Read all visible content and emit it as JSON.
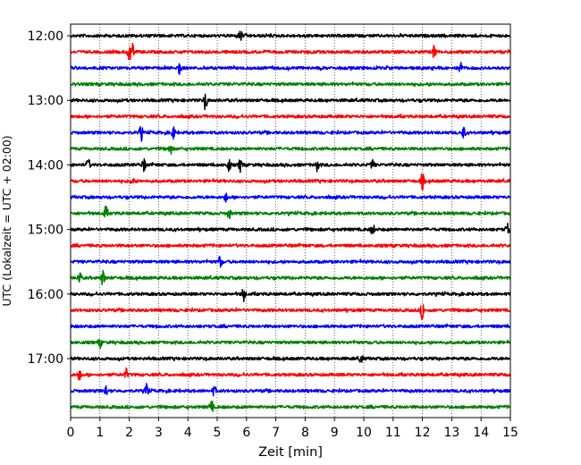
{
  "chart_data": {
    "type": "line",
    "title": "",
    "xlabel": "Zeit  [min]",
    "ylabel": "UTC (Lokalzeit = UTC + 02:00)",
    "xlim": [
      0,
      15
    ],
    "x_ticks": [
      0,
      1,
      2,
      3,
      4,
      5,
      6,
      7,
      8,
      9,
      10,
      11,
      12,
      13,
      14,
      15
    ],
    "y_ticks": [
      "12:00",
      "13:00",
      "14:00",
      "15:00",
      "16:00",
      "17:00"
    ],
    "grid": "vertical dotted",
    "legend": "none",
    "rows": [
      {
        "start": "12:00",
        "color": "#000000",
        "events": [
          [
            5.8,
            1.0
          ]
        ]
      },
      {
        "start": "12:15",
        "color": "#ff0000",
        "events": [
          [
            2.0,
            1.6
          ],
          [
            2.1,
            1.4
          ],
          [
            12.4,
            1.2
          ]
        ]
      },
      {
        "start": "12:30",
        "color": "#0000ff",
        "events": [
          [
            3.7,
            1.2
          ],
          [
            13.3,
            1.0
          ]
        ]
      },
      {
        "start": "12:45",
        "color": "#008000",
        "events": []
      },
      {
        "start": "13:00",
        "color": "#000000",
        "events": [
          [
            4.6,
            1.6
          ]
        ]
      },
      {
        "start": "13:15",
        "color": "#ff0000",
        "events": []
      },
      {
        "start": "13:30",
        "color": "#0000ff",
        "events": [
          [
            2.4,
            1.3
          ],
          [
            3.5,
            1.0
          ],
          [
            13.4,
            1.0
          ]
        ]
      },
      {
        "start": "13:45",
        "color": "#008000",
        "events": [
          [
            3.4,
            1.0
          ]
        ]
      },
      {
        "start": "14:00",
        "color": "#000000",
        "events": [
          [
            0.6,
            1.0
          ],
          [
            2.5,
            1.0
          ],
          [
            5.4,
            1.1
          ],
          [
            5.8,
            1.3
          ],
          [
            8.4,
            0.9
          ],
          [
            10.3,
            0.8
          ]
        ]
      },
      {
        "start": "14:15",
        "color": "#ff0000",
        "events": [
          [
            2.1,
            0.8
          ],
          [
            12.0,
            1.4
          ]
        ]
      },
      {
        "start": "14:30",
        "color": "#0000ff",
        "events": [
          [
            5.3,
            0.7
          ]
        ]
      },
      {
        "start": "14:45",
        "color": "#008000",
        "events": [
          [
            1.2,
            1.2
          ],
          [
            5.4,
            0.9
          ]
        ]
      },
      {
        "start": "15:00",
        "color": "#000000",
        "events": [
          [
            10.3,
            1.0
          ],
          [
            14.9,
            1.0
          ]
        ]
      },
      {
        "start": "15:15",
        "color": "#ff0000",
        "events": []
      },
      {
        "start": "15:30",
        "color": "#0000ff",
        "events": [
          [
            5.1,
            1.0
          ]
        ]
      },
      {
        "start": "15:45",
        "color": "#008000",
        "events": [
          [
            0.3,
            1.2
          ],
          [
            1.1,
            1.3
          ]
        ]
      },
      {
        "start": "16:00",
        "color": "#000000",
        "events": [
          [
            5.9,
            1.2
          ]
        ]
      },
      {
        "start": "16:15",
        "color": "#ff0000",
        "events": [
          [
            12.0,
            1.6
          ]
        ]
      },
      {
        "start": "16:30",
        "color": "#0000ff",
        "events": []
      },
      {
        "start": "16:45",
        "color": "#008000",
        "events": [
          [
            1.0,
            0.8
          ]
        ]
      },
      {
        "start": "17:00",
        "color": "#000000",
        "events": [
          [
            9.9,
            0.8
          ]
        ]
      },
      {
        "start": "17:15",
        "color": "#ff0000",
        "events": [
          [
            0.3,
            0.9
          ],
          [
            1.9,
            0.9
          ]
        ]
      },
      {
        "start": "17:30",
        "color": "#0000ff",
        "events": [
          [
            1.2,
            1.0
          ],
          [
            2.6,
            1.2
          ],
          [
            4.9,
            0.9
          ]
        ]
      },
      {
        "start": "17:45",
        "color": "#008000",
        "events": [
          [
            4.8,
            1.2
          ]
        ]
      }
    ]
  }
}
